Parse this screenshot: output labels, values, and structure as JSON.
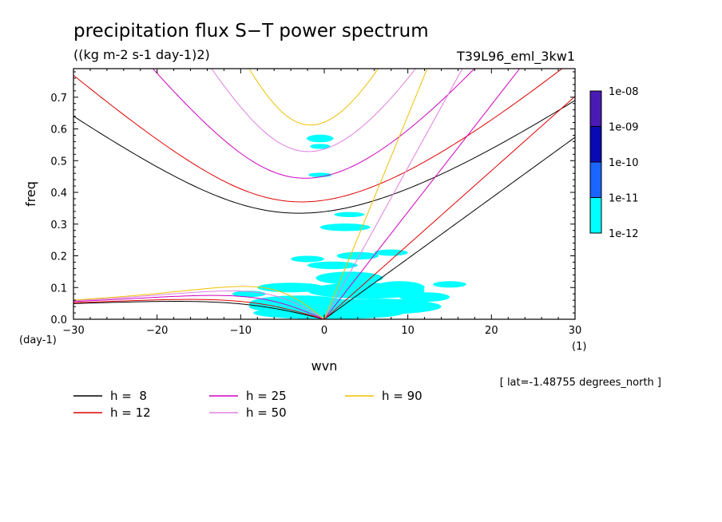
{
  "chart_data": {
    "type": "contour",
    "title": "precipitation flux S−T power spectrum",
    "units_label": "((kg m-2 s-1 day-1)2)",
    "run_label": "T39L96_eml_3kw1",
    "xlabel": "wvn",
    "ylabel": "freq",
    "x_unit_label": "(1)",
    "y_unit_label": "(day-1)",
    "xlim": [
      -30,
      30
    ],
    "ylim": [
      0.0,
      0.79
    ],
    "x_ticks": [
      "−30",
      "−20",
      "−10",
      "0",
      "10",
      "20",
      "30"
    ],
    "x_tick_values": [
      -30,
      -20,
      -10,
      0,
      10,
      20,
      30
    ],
    "y_ticks": [
      "0.0",
      "0.1",
      "0.2",
      "0.3",
      "0.4",
      "0.5",
      "0.6",
      "0.7"
    ],
    "y_tick_values": [
      0.0,
      0.1,
      0.2,
      0.3,
      0.4,
      0.5,
      0.6,
      0.7
    ],
    "footnote": "[ lat=-1.48755 degrees_north ]",
    "colorbar": {
      "labels": [
        "1e-08",
        "1e-09",
        "1e-10",
        "1e-11",
        "1e-12"
      ],
      "colors": [
        "#4a1ab4",
        "#0a0ab4",
        "#1a64ff",
        "#00ffff"
      ]
    },
    "spectrum_blobs": [
      {
        "x": 0.5,
        "y": 0.02,
        "rx": 9,
        "ry": 0.02
      },
      {
        "x": 6,
        "y": 0.04,
        "rx": 8,
        "ry": 0.025
      },
      {
        "x": -3,
        "y": 0.05,
        "rx": 6,
        "ry": 0.025
      },
      {
        "x": 5,
        "y": 0.09,
        "rx": 7,
        "ry": 0.025
      },
      {
        "x": -4,
        "y": 0.1,
        "rx": 4,
        "ry": 0.015
      },
      {
        "x": 3,
        "y": 0.13,
        "rx": 4,
        "ry": 0.02
      },
      {
        "x": 9,
        "y": 0.1,
        "rx": 3,
        "ry": 0.02
      },
      {
        "x": 12,
        "y": 0.07,
        "rx": 3,
        "ry": 0.015
      },
      {
        "x": -6,
        "y": 0.04,
        "rx": 3,
        "ry": 0.015
      },
      {
        "x": 1,
        "y": 0.17,
        "rx": 3,
        "ry": 0.012
      },
      {
        "x": 4,
        "y": 0.2,
        "rx": 2.5,
        "ry": 0.012
      },
      {
        "x": 8,
        "y": 0.21,
        "rx": 2,
        "ry": 0.01
      },
      {
        "x": -2,
        "y": 0.19,
        "rx": 2,
        "ry": 0.01
      },
      {
        "x": 2.5,
        "y": 0.29,
        "rx": 3,
        "ry": 0.012
      },
      {
        "x": 3,
        "y": 0.33,
        "rx": 1.8,
        "ry": 0.008
      },
      {
        "x": -0.5,
        "y": 0.57,
        "rx": 1.6,
        "ry": 0.012
      },
      {
        "x": -0.5,
        "y": 0.545,
        "rx": 1.2,
        "ry": 0.008
      },
      {
        "x": -0.5,
        "y": 0.455,
        "rx": 1.4,
        "ry": 0.007
      },
      {
        "x": 15,
        "y": 0.11,
        "rx": 2,
        "ry": 0.01
      },
      {
        "x": -9,
        "y": 0.08,
        "rx": 2,
        "ry": 0.01
      }
    ],
    "series": [
      {
        "name": "h =  8",
        "h": 8,
        "color": "#000000"
      },
      {
        "name": "h = 12",
        "h": 12,
        "color": "#e00000"
      },
      {
        "name": "h = 25",
        "h": 25,
        "color": "#d000c0"
      },
      {
        "name": "h = 50",
        "h": 50,
        "color": "#e080e0"
      },
      {
        "name": "h = 90",
        "h": 90,
        "color": "#f0c000"
      }
    ]
  }
}
